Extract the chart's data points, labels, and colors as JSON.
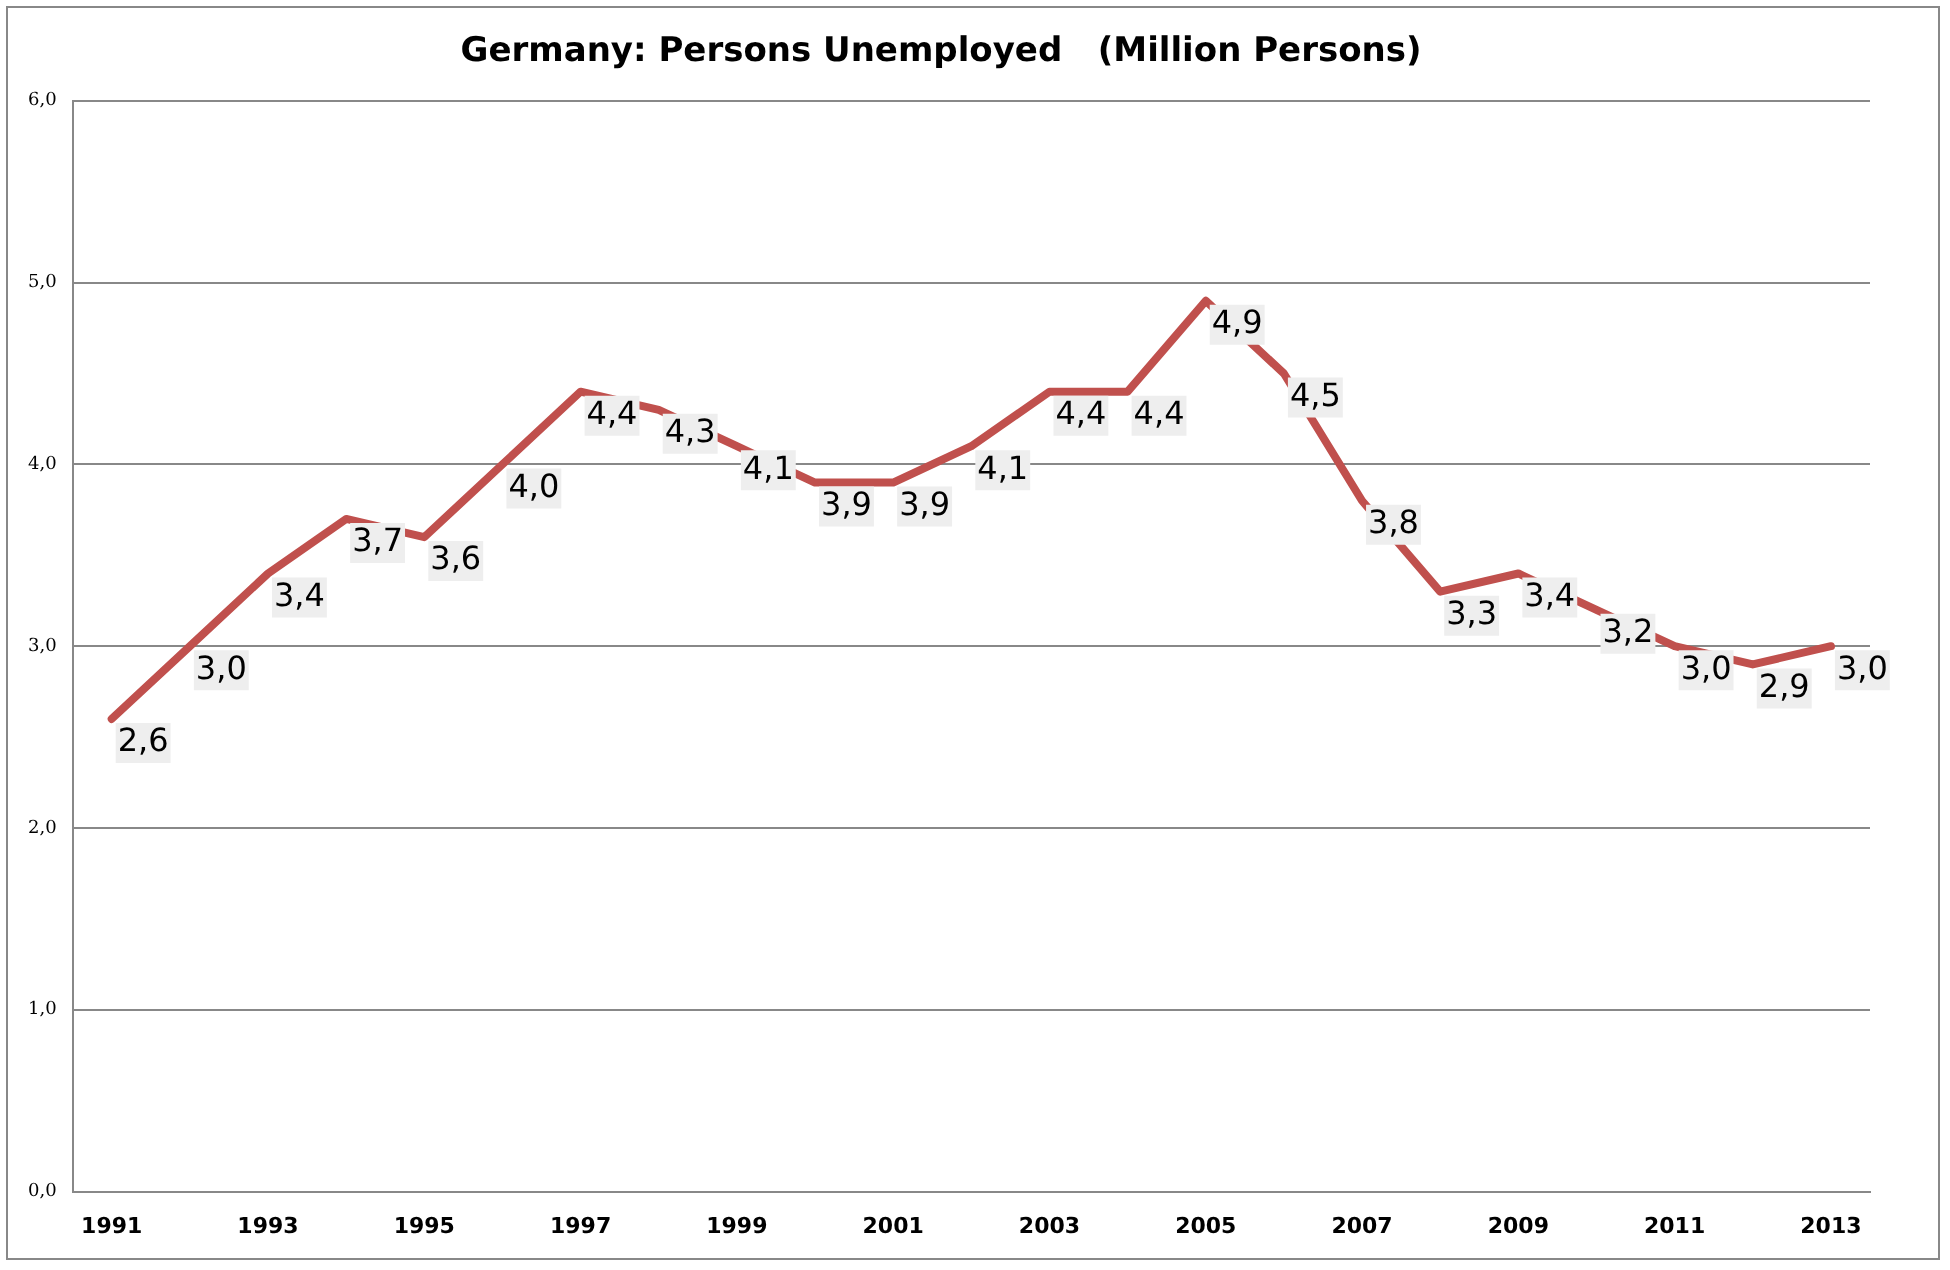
{
  "chart_data": {
    "type": "line",
    "title": "Germany: Persons Unemployed   (Million Persons)",
    "categories": [
      "1991",
      null,
      "1993",
      null,
      "1995",
      null,
      "1997",
      null,
      "1999",
      null,
      "2001",
      null,
      "2003",
      null,
      "2005",
      null,
      "2007",
      null,
      "2009",
      null,
      "2011",
      null,
      "2013"
    ],
    "series": [
      {
        "color": "#c0504d",
        "values": [
          2.6,
          3.0,
          3.4,
          3.7,
          3.6,
          4.0,
          4.4,
          4.3,
          4.1,
          3.9,
          3.9,
          4.1,
          4.4,
          4.4,
          4.9,
          4.5,
          3.8,
          3.3,
          3.4,
          3.2,
          3.0,
          2.9,
          3.0
        ],
        "value_labels": [
          "2,6",
          "3,0",
          "3,4",
          "3,7",
          "3,6",
          "4,0",
          "4,4",
          "4,3",
          "4,1",
          "3,9",
          "3,9",
          "4,1",
          "4,4",
          "4,4",
          "4,9",
          "4,5",
          "3,8",
          "3,3",
          "3,4",
          "3,2",
          "3,0",
          "2,9",
          "3,0"
        ]
      }
    ],
    "ylim": [
      0,
      6
    ],
    "yticks": [
      {
        "value": 0,
        "label": "0,0"
      },
      {
        "value": 1,
        "label": "1,0"
      },
      {
        "value": 2,
        "label": "2,0"
      },
      {
        "value": 3,
        "label": "3,0"
      },
      {
        "value": 4,
        "label": "4,0"
      },
      {
        "value": 5,
        "label": "5,0"
      },
      {
        "value": 6,
        "label": "6,0"
      }
    ],
    "grid": "y",
    "legend": false,
    "marker": "none",
    "line_style": "solid"
  }
}
